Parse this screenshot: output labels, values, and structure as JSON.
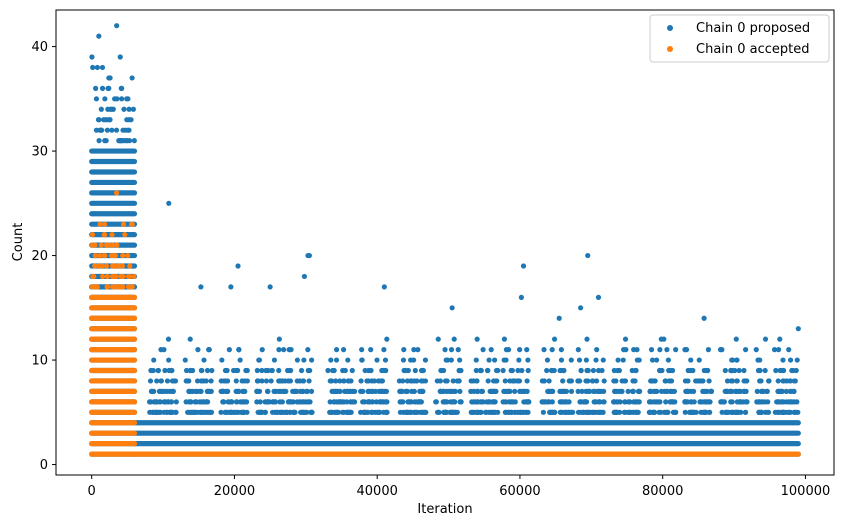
{
  "chart_data": {
    "type": "scatter",
    "title": "",
    "xlabel": "Iteration",
    "ylabel": "Count",
    "xlim": [
      -5000,
      104000
    ],
    "ylim": [
      -1,
      43.5
    ],
    "xticks": [
      0,
      20000,
      40000,
      60000,
      80000,
      100000
    ],
    "xtick_labels": [
      "0",
      "20000",
      "40000",
      "60000",
      "80000",
      "100000"
    ],
    "yticks": [
      0,
      10,
      20,
      30,
      40
    ],
    "ytick_labels": [
      "0",
      "10",
      "20",
      "30",
      "40"
    ],
    "grid": false,
    "legend_position": "top-right",
    "series": [
      {
        "name": "Chain 0 proposed",
        "color": "#1f77b4",
        "x_range": [
          0,
          99000
        ],
        "early_phase_end": 6000,
        "early_max_count": 39,
        "late_band_max": 4,
        "outliers": [
          [
            1000,
            41
          ],
          [
            3500,
            42
          ],
          [
            10800,
            25
          ],
          [
            20500,
            19
          ],
          [
            19500,
            17
          ],
          [
            25000,
            17
          ],
          [
            29800,
            18
          ],
          [
            30300,
            20
          ],
          [
            30500,
            20
          ],
          [
            41000,
            17
          ],
          [
            60500,
            19
          ],
          [
            60200,
            16
          ],
          [
            69500,
            20
          ],
          [
            71000,
            16
          ],
          [
            68500,
            15
          ],
          [
            50500,
            15
          ],
          [
            15300,
            17
          ],
          [
            85800,
            14
          ],
          [
            99000,
            13
          ],
          [
            65500,
            14
          ]
        ]
      },
      {
        "name": "Chain 0 accepted",
        "color": "#ff7f0e",
        "x_range": [
          0,
          99000
        ],
        "early_phase_end": 6000,
        "early_max_count": 23,
        "late_value": 1,
        "outliers": [
          [
            3500,
            26
          ]
        ]
      }
    ]
  }
}
